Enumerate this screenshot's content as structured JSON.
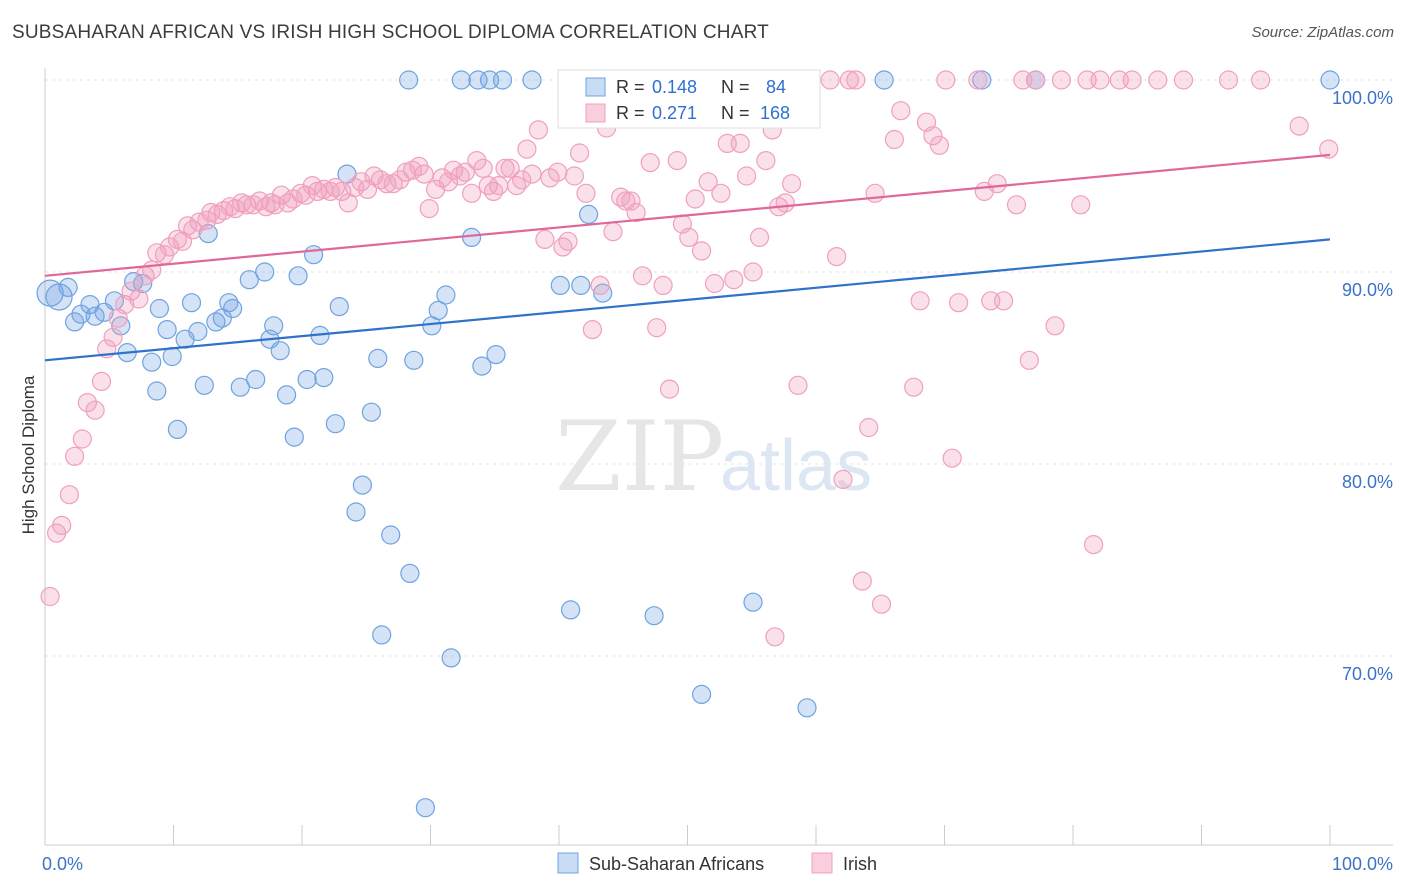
{
  "header": {
    "title": "SUBSAHARAN AFRICAN VS IRISH HIGH SCHOOL DIPLOMA CORRELATION CHART",
    "source": "Source: ZipAtlas.com"
  },
  "watermark": {
    "zip": "ZIP",
    "atlas": "atlas"
  },
  "colors": {
    "blue": "#6fa3e0",
    "blue_line": "#2f72c9",
    "pink": "#f0a0bd",
    "pink_line": "#e0679a",
    "value_text": "#2f6fd1",
    "axis_text": "#3c72c8"
  },
  "legend_top": {
    "rows": [
      {
        "r_label": "R =",
        "r_value": "0.148",
        "n_label": "N =",
        "n_value": "84",
        "color": "blue"
      },
      {
        "r_label": "R =",
        "r_value": "0.271",
        "n_label": "N =",
        "n_value": "168",
        "color": "pink"
      }
    ]
  },
  "chart_data": {
    "type": "scatter",
    "title": "SUBSAHARAN AFRICAN VS IRISH HIGH SCHOOL DIPLOMA CORRELATION CHART",
    "ylabel": "High School Diploma",
    "x_tick_labels": [
      "0.0%",
      "100.0%"
    ],
    "y_tick_labels": [
      "100.0%",
      "90.0%",
      "80.0%",
      "70.0%"
    ],
    "xlim": [
      0,
      100
    ],
    "ylim": [
      61,
      102
    ],
    "grid": true,
    "legend_position": "bottom-center",
    "series": [
      {
        "name": "Sub-Saharan Africans",
        "color": "blue",
        "r": 0.148,
        "n": 84,
        "trend": [
          [
            0,
            85.4
          ],
          [
            100,
            91.7
          ]
        ],
        "points": [
          [
            0.4,
            88.9
          ],
          [
            1.1,
            88.7
          ],
          [
            1.8,
            89.2
          ],
          [
            2.3,
            87.4
          ],
          [
            2.8,
            87.8
          ],
          [
            3.5,
            88.3
          ],
          [
            3.9,
            87.7
          ],
          [
            4.6,
            87.9
          ],
          [
            5.4,
            88.5
          ],
          [
            5.9,
            87.2
          ],
          [
            6.4,
            85.8
          ],
          [
            6.9,
            89.5
          ],
          [
            7.6,
            89.4
          ],
          [
            8.3,
            85.3
          ],
          [
            8.7,
            83.8
          ],
          [
            8.9,
            88.1
          ],
          [
            9.5,
            87.0
          ],
          [
            9.9,
            85.6
          ],
          [
            10.3,
            81.8
          ],
          [
            10.9,
            86.5
          ],
          [
            11.4,
            88.4
          ],
          [
            11.9,
            86.9
          ],
          [
            12.4,
            84.1
          ],
          [
            12.7,
            92.0
          ],
          [
            13.3,
            87.4
          ],
          [
            13.8,
            87.6
          ],
          [
            14.3,
            88.4
          ],
          [
            14.6,
            88.1
          ],
          [
            15.2,
            84.0
          ],
          [
            15.9,
            89.6
          ],
          [
            16.4,
            84.4
          ],
          [
            17.1,
            90.0
          ],
          [
            17.5,
            86.5
          ],
          [
            17.8,
            87.2
          ],
          [
            18.3,
            85.9
          ],
          [
            18.8,
            83.6
          ],
          [
            19.4,
            81.4
          ],
          [
            19.7,
            89.8
          ],
          [
            20.4,
            84.4
          ],
          [
            20.9,
            90.9
          ],
          [
            21.4,
            86.7
          ],
          [
            21.7,
            84.5
          ],
          [
            22.6,
            82.1
          ],
          [
            22.9,
            88.2
          ],
          [
            23.5,
            95.1
          ],
          [
            24.2,
            77.5
          ],
          [
            24.7,
            78.9
          ],
          [
            25.4,
            82.7
          ],
          [
            25.9,
            85.5
          ],
          [
            26.2,
            71.1
          ],
          [
            26.9,
            76.3
          ],
          [
            28.4,
            74.3
          ],
          [
            28.7,
            85.4
          ],
          [
            28.3,
            100.0
          ],
          [
            29.6,
            62.1
          ],
          [
            30.1,
            87.2
          ],
          [
            30.6,
            88.0
          ],
          [
            31.2,
            88.8
          ],
          [
            31.6,
            69.9
          ],
          [
            32.4,
            100.0
          ],
          [
            33.2,
            91.8
          ],
          [
            33.7,
            100.0
          ],
          [
            34.0,
            85.1
          ],
          [
            34.6,
            100.0
          ],
          [
            35.1,
            85.7
          ],
          [
            35.6,
            100.0
          ],
          [
            37.9,
            100.0
          ],
          [
            40.1,
            89.3
          ],
          [
            40.9,
            72.4
          ],
          [
            41.7,
            89.3
          ],
          [
            42.3,
            93.0
          ],
          [
            43.4,
            88.9
          ],
          [
            47.4,
            72.1
          ],
          [
            49.1,
            100.0
          ],
          [
            51.1,
            68.0
          ],
          [
            53.1,
            100.0
          ],
          [
            54.2,
            100.0
          ],
          [
            54.4,
            99.1
          ],
          [
            55.1,
            72.8
          ],
          [
            59.3,
            67.3
          ],
          [
            65.3,
            100.0
          ],
          [
            72.9,
            100.0
          ],
          [
            77.1,
            100.0
          ],
          [
            100.0,
            100.0
          ]
        ]
      },
      {
        "name": "Irish",
        "color": "pink",
        "r": 0.271,
        "n": 168,
        "trend": [
          [
            0,
            89.8
          ],
          [
            100,
            96.1
          ]
        ],
        "points": [
          [
            0.4,
            73.1
          ],
          [
            0.9,
            76.4
          ],
          [
            1.3,
            76.8
          ],
          [
            1.9,
            78.4
          ],
          [
            2.3,
            80.4
          ],
          [
            2.9,
            81.3
          ],
          [
            3.3,
            83.2
          ],
          [
            3.9,
            82.8
          ],
          [
            4.4,
            84.3
          ],
          [
            4.8,
            86.0
          ],
          [
            5.3,
            86.6
          ],
          [
            5.7,
            87.6
          ],
          [
            6.2,
            88.3
          ],
          [
            6.7,
            89.0
          ],
          [
            7.3,
            88.6
          ],
          [
            7.8,
            89.8
          ],
          [
            8.3,
            90.1
          ],
          [
            8.7,
            91.0
          ],
          [
            9.3,
            90.9
          ],
          [
            9.7,
            91.3
          ],
          [
            10.3,
            91.7
          ],
          [
            10.7,
            91.6
          ],
          [
            11.1,
            92.4
          ],
          [
            11.5,
            92.2
          ],
          [
            12.0,
            92.6
          ],
          [
            12.6,
            92.7
          ],
          [
            12.9,
            93.1
          ],
          [
            13.4,
            93.0
          ],
          [
            13.9,
            93.2
          ],
          [
            14.4,
            93.4
          ],
          [
            14.8,
            93.3
          ],
          [
            15.3,
            93.6
          ],
          [
            15.7,
            93.5
          ],
          [
            16.2,
            93.5
          ],
          [
            16.7,
            93.7
          ],
          [
            17.2,
            93.4
          ],
          [
            17.6,
            93.6
          ],
          [
            17.9,
            93.5
          ],
          [
            18.4,
            94.0
          ],
          [
            18.9,
            93.6
          ],
          [
            19.3,
            93.8
          ],
          [
            19.9,
            94.1
          ],
          [
            20.3,
            94.0
          ],
          [
            20.8,
            94.5
          ],
          [
            21.2,
            94.2
          ],
          [
            21.7,
            94.3
          ],
          [
            22.2,
            94.2
          ],
          [
            22.6,
            94.4
          ],
          [
            23.1,
            94.2
          ],
          [
            23.6,
            93.6
          ],
          [
            24.1,
            94.4
          ],
          [
            24.6,
            94.7
          ],
          [
            25.1,
            94.3
          ],
          [
            25.6,
            95.0
          ],
          [
            26.1,
            94.8
          ],
          [
            26.6,
            94.6
          ],
          [
            27.1,
            94.6
          ],
          [
            27.6,
            94.8
          ],
          [
            28.1,
            95.2
          ],
          [
            28.6,
            95.3
          ],
          [
            29.1,
            95.5
          ],
          [
            29.5,
            95.1
          ],
          [
            29.9,
            93.3
          ],
          [
            30.4,
            94.3
          ],
          [
            30.9,
            94.9
          ],
          [
            31.4,
            94.7
          ],
          [
            31.8,
            95.3
          ],
          [
            32.3,
            95.0
          ],
          [
            32.7,
            95.2
          ],
          [
            33.2,
            94.1
          ],
          [
            33.6,
            95.8
          ],
          [
            34.1,
            95.4
          ],
          [
            34.5,
            94.5
          ],
          [
            34.9,
            94.2
          ],
          [
            35.3,
            94.5
          ],
          [
            35.8,
            95.4
          ],
          [
            36.2,
            95.4
          ],
          [
            36.7,
            94.5
          ],
          [
            37.1,
            94.8
          ],
          [
            37.5,
            96.4
          ],
          [
            37.9,
            95.1
          ],
          [
            38.4,
            97.4
          ],
          [
            38.9,
            91.7
          ],
          [
            39.3,
            94.9
          ],
          [
            39.9,
            95.2
          ],
          [
            40.3,
            91.3
          ],
          [
            40.7,
            91.6
          ],
          [
            41.2,
            95.0
          ],
          [
            41.6,
            96.2
          ],
          [
            42.1,
            94.1
          ],
          [
            42.6,
            87.0
          ],
          [
            43.2,
            89.3
          ],
          [
            43.7,
            97.5
          ],
          [
            44.2,
            92.1
          ],
          [
            44.8,
            93.9
          ],
          [
            45.2,
            93.7
          ],
          [
            45.6,
            93.7
          ],
          [
            46.0,
            93.1
          ],
          [
            46.5,
            89.8
          ],
          [
            47.1,
            95.7
          ],
          [
            47.6,
            87.1
          ],
          [
            48.1,
            89.3
          ],
          [
            48.6,
            83.9
          ],
          [
            49.2,
            95.8
          ],
          [
            49.6,
            92.5
          ],
          [
            50.1,
            91.8
          ],
          [
            50.6,
            93.8
          ],
          [
            51.1,
            91.1
          ],
          [
            51.6,
            94.7
          ],
          [
            52.1,
            89.4
          ],
          [
            52.6,
            94.1
          ],
          [
            53.1,
            96.7
          ],
          [
            53.6,
            89.6
          ],
          [
            54.1,
            96.7
          ],
          [
            54.6,
            95.0
          ],
          [
            55.1,
            90.0
          ],
          [
            55.6,
            91.8
          ],
          [
            56.1,
            95.8
          ],
          [
            56.6,
            97.4
          ],
          [
            57.1,
            93.4
          ],
          [
            57.6,
            93.6
          ],
          [
            58.1,
            94.6
          ],
          [
            58.6,
            84.1
          ],
          [
            59.1,
            100.0
          ],
          [
            61.1,
            100.0
          ],
          [
            61.6,
            90.8
          ],
          [
            62.1,
            79.2
          ],
          [
            62.6,
            100.0
          ],
          [
            63.1,
            100.0
          ],
          [
            63.6,
            73.9
          ],
          [
            64.1,
            81.9
          ],
          [
            64.6,
            94.1
          ],
          [
            65.1,
            72.7
          ],
          [
            66.1,
            96.9
          ],
          [
            66.6,
            98.4
          ],
          [
            67.6,
            84.0
          ],
          [
            68.1,
            88.5
          ],
          [
            68.6,
            97.8
          ],
          [
            69.1,
            97.1
          ],
          [
            69.6,
            96.6
          ],
          [
            70.1,
            100.0
          ],
          [
            70.6,
            80.3
          ],
          [
            71.1,
            88.4
          ],
          [
            72.6,
            100.0
          ],
          [
            73.1,
            94.2
          ],
          [
            73.6,
            88.5
          ],
          [
            74.1,
            94.6
          ],
          [
            74.6,
            88.5
          ],
          [
            75.6,
            93.5
          ],
          [
            76.1,
            100.0
          ],
          [
            76.6,
            85.4
          ],
          [
            77.1,
            100.0
          ],
          [
            78.6,
            87.2
          ],
          [
            79.1,
            100.0
          ],
          [
            80.6,
            93.5
          ],
          [
            81.1,
            100.0
          ],
          [
            81.6,
            75.8
          ],
          [
            82.1,
            100.0
          ],
          [
            83.6,
            100.0
          ],
          [
            84.6,
            100.0
          ],
          [
            86.6,
            100.0
          ],
          [
            88.6,
            100.0
          ],
          [
            92.1,
            100.0
          ],
          [
            94.6,
            100.0
          ],
          [
            97.6,
            97.6
          ],
          [
            99.9,
            96.4
          ],
          [
            56.8,
            71.0
          ],
          [
            41.9,
            100.0
          ]
        ]
      }
    ]
  },
  "legend_bottom": {
    "items": [
      {
        "label": "Sub-Saharan Africans",
        "color": "blue"
      },
      {
        "label": "Irish",
        "color": "pink"
      }
    ]
  }
}
